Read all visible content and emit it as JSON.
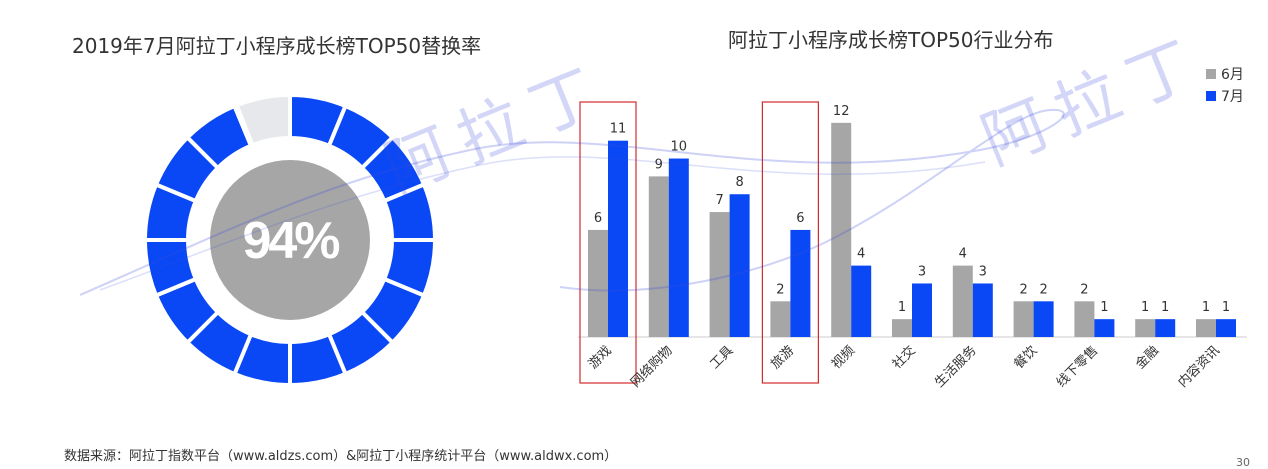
{
  "left_title": "2019年7月阿拉丁小程序成长榜TOP50替换率",
  "right_title": "阿拉丁小程序成长榜TOP50行业分布",
  "source": "数据来源：阿拉丁指数平台（www.aldzs.com）&阿拉丁小程序统计平台（www.aldwx.com）",
  "page_number": "30",
  "watermark": "阿拉丁",
  "colors": {
    "gray": "#a6a6a6",
    "blue": "#0a48f5",
    "light_gray": "#e7e8ec",
    "highlight_box": "#d42a2a"
  },
  "chart_data": [
    {
      "type": "pie",
      "variant": "donut",
      "center_label": "94%",
      "segments": 16,
      "value": 94,
      "remainder": 6
    },
    {
      "type": "bar",
      "legend_position": "top-right",
      "categories": [
        "游戏",
        "网络购物",
        "工具",
        "旅游",
        "视频",
        "社交",
        "生活服务",
        "餐饮",
        "线下零售",
        "金融",
        "内容资讯"
      ],
      "highlighted_categories": [
        "游戏",
        "旅游"
      ],
      "series": [
        {
          "name": "6月",
          "values": [
            6,
            9,
            7,
            2,
            12,
            1,
            4,
            2,
            2,
            1,
            1
          ]
        },
        {
          "name": "7月",
          "values": [
            11,
            10,
            8,
            6,
            4,
            3,
            3,
            2,
            1,
            1,
            1
          ]
        }
      ],
      "ylim": [
        0,
        13
      ]
    }
  ]
}
